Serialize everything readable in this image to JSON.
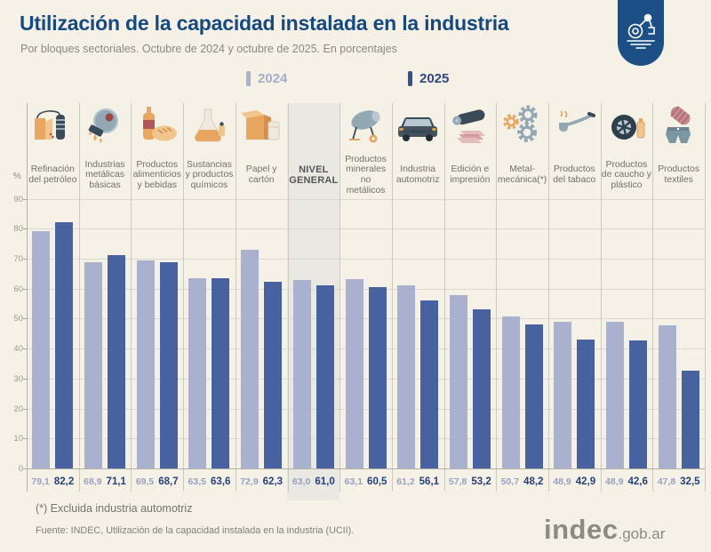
{
  "header": {
    "title": "Utilización de la capacidad instalada en la industria",
    "subtitle": "Por bloques sectoriales. Octubre de 2024 y octubre de 2025. En porcentajes",
    "badge_icon": "robot-arm-icon"
  },
  "legend": {
    "items": [
      {
        "label": "2024",
        "marker_color": "#a9b1ce",
        "text_color": "#a6adc8"
      },
      {
        "label": "2025",
        "marker_color": "#33518c",
        "text_color": "#2d4a82"
      }
    ],
    "position": "top-center"
  },
  "chart_data": {
    "type": "bar",
    "title": "Utilización de la capacidad instalada en la industria",
    "subtitle": "Por bloques sectoriales. Octubre de 2024 y octubre de 2025. En porcentajes",
    "ylabel": "%",
    "ylim": [
      0,
      90
    ],
    "yticks": [
      0,
      10,
      20,
      30,
      40,
      50,
      60,
      70,
      80,
      90
    ],
    "grid": true,
    "legend_position": "top-center",
    "highlight_index": 5,
    "categories": [
      "Refinación del petróleo",
      "Industrias metálicas básicas",
      "Productos alimenticios y bebidas",
      "Sustancias y productos químicos",
      "Papel y cartón",
      "NIVEL GENERAL",
      "Productos minerales no metálicos",
      "Industria automotriz",
      "Edición e impresión",
      "Metal-mecánica(*)",
      "Productos del tabaco",
      "Productos de caucho y plástico",
      "Productos textiles"
    ],
    "icons": [
      "oil-refinery-icon",
      "metal-grinder-icon",
      "food-beverage-icon",
      "chemical-flask-icon",
      "cardboard-box-icon",
      "",
      "cement-mixer-icon",
      "car-icon",
      "printing-roller-icon",
      "gears-icon",
      "tobacco-pipe-icon",
      "tire-icon",
      "textile-icon"
    ],
    "series": [
      {
        "name": "2024",
        "color": "#a9b1ce",
        "values": [
          79.1,
          68.9,
          69.5,
          63.5,
          72.9,
          63.0,
          63.1,
          61.2,
          57.8,
          50.7,
          48.9,
          48.9,
          47.8
        ],
        "labels": [
          "79,1",
          "68,9",
          "69,5",
          "63,5",
          "72,9",
          "63,0",
          "63,1",
          "61,2",
          "57,8",
          "50,7",
          "48,9",
          "48,9",
          "47,8"
        ]
      },
      {
        "name": "2025",
        "color": "#47629f",
        "values": [
          82.2,
          71.1,
          68.7,
          63.6,
          62.3,
          61.0,
          60.5,
          56.1,
          53.2,
          48.2,
          42.9,
          42.6,
          32.5
        ],
        "labels": [
          "82,2",
          "71,1",
          "68,7",
          "63,6",
          "62,3",
          "61,0",
          "60,5",
          "56,1",
          "53,2",
          "48,2",
          "42,9",
          "42,6",
          "32,5"
        ]
      }
    ]
  },
  "footer": {
    "note": "(*) Excluida industria automotriz",
    "source": "Fuente: INDEC, Utilización de la capacidad instalada en la industria (UCII).",
    "logo_text": "indec",
    "logo_suffix": ".gob.ar"
  },
  "colors": {
    "background": "#f6f1e6",
    "title": "#15497f",
    "badge": "#1d4f87",
    "bar_2024": "#a9b1ce",
    "bar_2025": "#47629f",
    "value_2024_text": "#98a1c0",
    "value_2025_text": "#24417b",
    "highlight_column": "#e9e8e2",
    "gridline": "#ddd9cf"
  }
}
